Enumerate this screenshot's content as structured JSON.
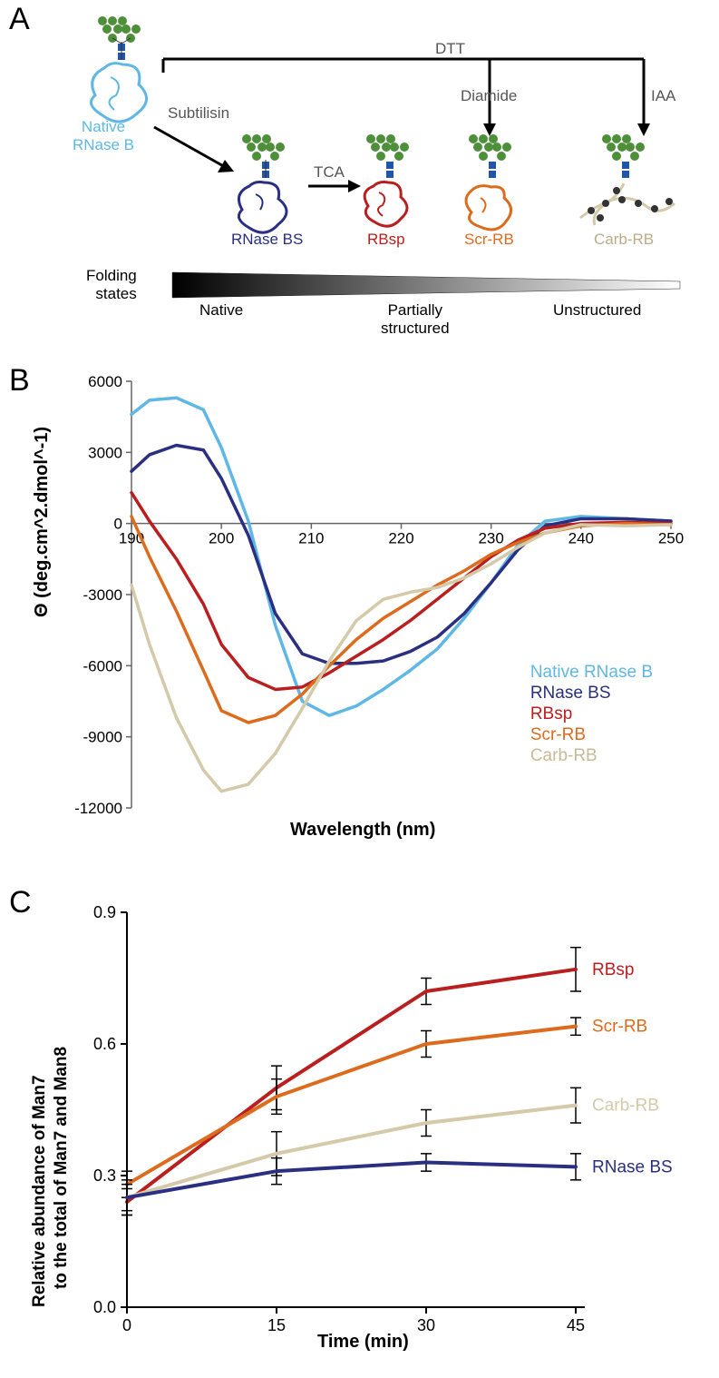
{
  "panelA": {
    "label": "A",
    "nodes": {
      "native": {
        "label": "Native\nRNase B",
        "color": "#5fb7e5"
      },
      "rnase_bs": {
        "label": "RNase BS",
        "color": "#2a2f82"
      },
      "rbsp": {
        "label": "RBsp",
        "color": "#b91f1f"
      },
      "scr_rb": {
        "label": "Scr-RB",
        "color": "#dd6b1e"
      },
      "carb_rb": {
        "label": "Carb-RB",
        "color": "#d4c9a8"
      }
    },
    "edges": {
      "subtilisin": "Subtilisin",
      "tca": "TCA",
      "dtt": "DTT",
      "diamide": "Diamide",
      "iaa": "IAA"
    },
    "folding": {
      "title": "Folding\nstates",
      "native": "Native",
      "partial": "Partially\nstructured",
      "unstructured": "Unstructured"
    }
  },
  "panelB": {
    "label": "B",
    "type": "line",
    "xlabel": "Wavelength (nm)",
    "ylabel": "Θ (deg.cm^2.dmol^-1)",
    "xlim": [
      190,
      250
    ],
    "ylim": [
      -12000,
      6000
    ],
    "xticks": [
      190,
      200,
      210,
      220,
      230,
      240,
      250
    ],
    "yticks": [
      -12000,
      -9000,
      -6000,
      -3000,
      0,
      3000,
      6000
    ],
    "grid_color": "#999999",
    "background_color": "#ffffff",
    "line_width": 3.5,
    "series": {
      "native": {
        "label": "Native RNase B",
        "color": "#5fb7e5",
        "x": [
          190,
          192,
          195,
          198,
          200,
          203,
          206,
          209,
          212,
          215,
          218,
          221,
          224,
          227,
          230,
          233,
          236,
          240,
          245,
          250
        ],
        "y": [
          4600,
          5200,
          5300,
          4800,
          3200,
          100,
          -4300,
          -7500,
          -8100,
          -7700,
          -7000,
          -6200,
          -5300,
          -4000,
          -2500,
          -900,
          100,
          300,
          200,
          100
        ]
      },
      "rnase_bs": {
        "label": "RNase BS",
        "color": "#2a2f82",
        "x": [
          190,
          192,
          195,
          198,
          200,
          203,
          206,
          209,
          212,
          215,
          218,
          221,
          224,
          227,
          230,
          233,
          236,
          240,
          245,
          250
        ],
        "y": [
          2200,
          2900,
          3300,
          3100,
          1900,
          -500,
          -3800,
          -5500,
          -5900,
          -5900,
          -5800,
          -5400,
          -4800,
          -3800,
          -2500,
          -1100,
          -100,
          200,
          200,
          100
        ]
      },
      "rbsp": {
        "label": "RBsp",
        "color": "#b91f1f",
        "x": [
          190,
          192,
          195,
          198,
          200,
          203,
          206,
          209,
          212,
          215,
          218,
          221,
          224,
          227,
          230,
          233,
          236,
          240,
          245,
          250
        ],
        "y": [
          1300,
          100,
          -1500,
          -3400,
          -5100,
          -6500,
          -7000,
          -6900,
          -6300,
          -5600,
          -4900,
          -4100,
          -3200,
          -2300,
          -1400,
          -700,
          -200,
          0,
          50,
          0
        ]
      },
      "scr_rb": {
        "label": "Scr-RB",
        "color": "#dd6b1e",
        "x": [
          190,
          192,
          195,
          198,
          200,
          203,
          206,
          209,
          212,
          215,
          218,
          221,
          224,
          227,
          230,
          233,
          236,
          240,
          245,
          250
        ],
        "y": [
          300,
          -1400,
          -3700,
          -6200,
          -7900,
          -8400,
          -8100,
          -7200,
          -6000,
          -4900,
          -4000,
          -3300,
          -2600,
          -2000,
          -1300,
          -800,
          -400,
          -100,
          0,
          -50
        ]
      },
      "carb_rb": {
        "label": "Carb-RB",
        "color": "#d4c9a8",
        "x": [
          190,
          192,
          195,
          198,
          200,
          203,
          206,
          209,
          212,
          215,
          218,
          221,
          224,
          227,
          230,
          233,
          236,
          240,
          245,
          250
        ],
        "y": [
          -2600,
          -5100,
          -8200,
          -10400,
          -11300,
          -11000,
          -9700,
          -7800,
          -5800,
          -4100,
          -3200,
          -2900,
          -2700,
          -2300,
          -1700,
          -1000,
          -400,
          -50,
          -100,
          -50
        ]
      }
    },
    "legend_order": [
      "native",
      "rnase_bs",
      "rbsp",
      "scr_rb",
      "carb_rb"
    ]
  },
  "panelC": {
    "label": "C",
    "type": "line",
    "xlabel": "Time (min)",
    "ylabel_line1": "Relative abundance of Man7",
    "ylabel_line2": "to the total of Man7 and Man8",
    "xlim": [
      0,
      45
    ],
    "ylim": [
      0,
      0.9
    ],
    "xticks": [
      0,
      15,
      30,
      45
    ],
    "yticks": [
      0,
      0.3,
      0.6,
      0.9
    ],
    "axis_color": "#000000",
    "background_color": "#ffffff",
    "line_width": 4,
    "errorbar_width": 1.5,
    "series": {
      "rbsp": {
        "label": "RBsp",
        "color": "#b91f1f",
        "x": [
          0,
          15,
          30,
          45
        ],
        "y": [
          0.24,
          0.5,
          0.72,
          0.77
        ],
        "err": [
          0.03,
          0.05,
          0.03,
          0.05
        ]
      },
      "scr_rb": {
        "label": "Scr-RB",
        "color": "#dd6b1e",
        "x": [
          0,
          15,
          30,
          45
        ],
        "y": [
          0.28,
          0.48,
          0.6,
          0.64
        ],
        "err": [
          0.03,
          0.04,
          0.03,
          0.02
        ]
      },
      "carb_rb": {
        "label": "Carb-RB",
        "color": "#d4c9a8",
        "x": [
          0,
          15,
          30,
          45
        ],
        "y": [
          0.25,
          0.35,
          0.42,
          0.46
        ],
        "err": [
          0.03,
          0.05,
          0.03,
          0.04
        ]
      },
      "rnase_bs": {
        "label": "RNase BS",
        "color": "#2a2f82",
        "x": [
          0,
          15,
          30,
          45
        ],
        "y": [
          0.25,
          0.31,
          0.33,
          0.32
        ],
        "err": [
          0.04,
          0.03,
          0.02,
          0.03
        ]
      }
    },
    "label_order": [
      "rbsp",
      "scr_rb",
      "carb_rb",
      "rnase_bs"
    ]
  }
}
